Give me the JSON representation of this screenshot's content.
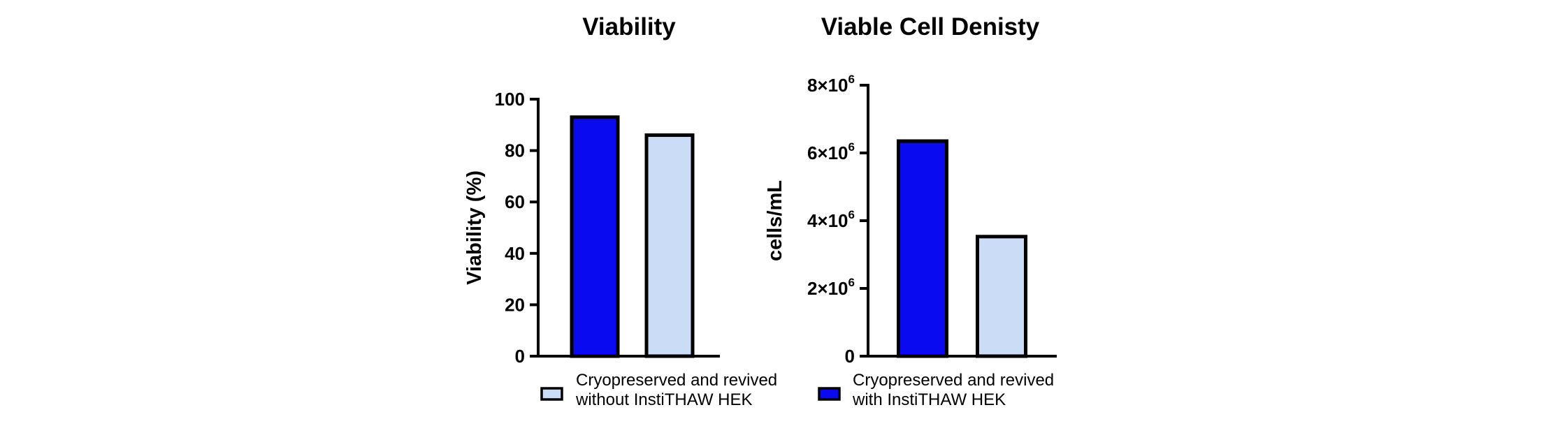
{
  "legend": [
    {
      "label_lines": [
        "Cryopreserved and revived",
        "without InstiTHAW HEK"
      ],
      "color": "#cadcf6"
    },
    {
      "label_lines": [
        "Cryopreserved and revived",
        "with InstiTHAW HEK"
      ],
      "color": "#0a0af0"
    }
  ],
  "chart_data": [
    {
      "type": "bar",
      "title": "Viability",
      "xlabel": "",
      "ylabel": "Viability (%)",
      "ylim": [
        0,
        100
      ],
      "yticks": [
        0,
        20,
        40,
        60,
        80,
        100
      ],
      "ytick_labels": [
        "0",
        "20",
        "40",
        "60",
        "80",
        "100"
      ],
      "bars": [
        {
          "group": "with InstiTHAW HEK",
          "value": 93,
          "color": "#0a0af0"
        },
        {
          "group": "without InstiTHAW HEK",
          "value": 86,
          "color": "#cadcf6"
        }
      ],
      "grid": false
    },
    {
      "type": "bar",
      "title": "Viable Cell Denisty",
      "xlabel": "",
      "ylabel": "cells/mL",
      "ylim": [
        0,
        8000000
      ],
      "yticks": [
        0,
        2000000,
        4000000,
        6000000,
        8000000
      ],
      "ytick_labels": [
        {
          "mantissa": "0",
          "exp": ""
        },
        {
          "mantissa": "2×10",
          "exp": "6"
        },
        {
          "mantissa": "4×10",
          "exp": "6"
        },
        {
          "mantissa": "6×10",
          "exp": "6"
        },
        {
          "mantissa": "8×10",
          "exp": "6"
        }
      ],
      "bars": [
        {
          "group": "with InstiTHAW HEK",
          "value": 6350000,
          "color": "#0a0af0"
        },
        {
          "group": "without InstiTHAW HEK",
          "value": 3530000,
          "color": "#cadcf6"
        }
      ],
      "grid": false
    }
  ]
}
